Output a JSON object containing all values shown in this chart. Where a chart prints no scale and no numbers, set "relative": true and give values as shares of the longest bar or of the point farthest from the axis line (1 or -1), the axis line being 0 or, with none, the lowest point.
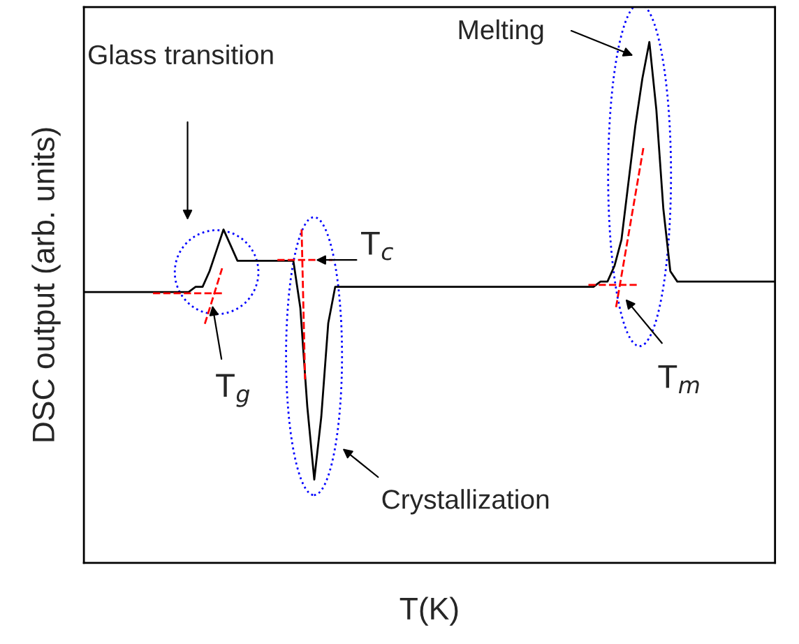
{
  "chart_data": {
    "type": "line",
    "relative": true,
    "xlabel": "T(K)",
    "ylabel": "DSC output (arb. units)",
    "color": "#000000",
    "grid": false,
    "categories": [
      null,
      null,
      null,
      null,
      null,
      null,
      null,
      null,
      null,
      null,
      null,
      null,
      null,
      null,
      null,
      null,
      null,
      null,
      null,
      null,
      null,
      null,
      null,
      null,
      null,
      null,
      null,
      null,
      null,
      null,
      null,
      null,
      null,
      null,
      null,
      null,
      null,
      null,
      null,
      null,
      null,
      null,
      null,
      null,
      null,
      null,
      null,
      null,
      null,
      null,
      null,
      null,
      null,
      null,
      null,
      null,
      null,
      null,
      null,
      null,
      null,
      null,
      null,
      null,
      null,
      null,
      null,
      null,
      null,
      null,
      null,
      null,
      null,
      null,
      null,
      null,
      null,
      null,
      null,
      null,
      null,
      null,
      null,
      null,
      null,
      null,
      null,
      null,
      null,
      null,
      null,
      null,
      null,
      null,
      null,
      null,
      null,
      null,
      null,
      null
    ],
    "values": [
      0.52,
      0.52,
      0.52,
      0.52,
      0.52,
      0.52,
      0.52,
      0.52,
      0.52,
      0.52,
      0.52,
      0.52,
      0.52,
      0.52,
      0.52,
      0.52,
      0.53,
      0.53,
      0.56,
      0.6,
      0.64,
      0.61,
      0.58,
      0.58,
      0.58,
      0.58,
      0.58,
      0.58,
      0.58,
      0.58,
      0.58,
      0.49,
      0.3,
      0.16,
      0.28,
      0.46,
      0.53,
      0.53,
      0.53,
      0.53,
      0.53,
      0.53,
      0.53,
      0.53,
      0.53,
      0.53,
      0.53,
      0.53,
      0.53,
      0.53,
      0.53,
      0.53,
      0.53,
      0.53,
      0.53,
      0.53,
      0.53,
      0.53,
      0.53,
      0.53,
      0.53,
      0.53,
      0.53,
      0.53,
      0.53,
      0.53,
      0.53,
      0.53,
      0.53,
      0.53,
      0.53,
      0.53,
      0.53,
      0.53,
      0.54,
      0.54,
      0.57,
      0.62,
      0.73,
      0.84,
      0.93,
      1.0,
      0.87,
      0.68,
      0.56,
      0.54,
      0.54,
      0.54,
      0.54,
      0.54,
      0.54,
      0.54,
      0.54,
      0.54,
      0.54,
      0.54,
      0.54,
      0.54,
      0.54,
      0.54
    ],
    "annotations": [
      "Glass transition",
      "T$_{c}$",
      "T$_{g}$",
      "Melting",
      "T$_{m}$",
      "Crystallization"
    ]
  }
}
